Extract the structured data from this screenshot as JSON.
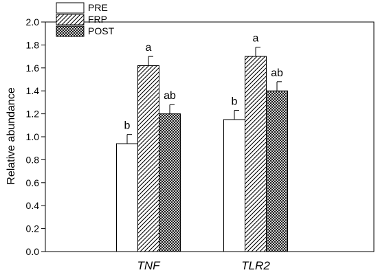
{
  "chart_data": {
    "type": "bar",
    "ylabel": "Relative abundance",
    "xlabel": "",
    "ylim": [
      0,
      2.0
    ],
    "yticks": [
      "0.0",
      "0.2",
      "0.4",
      "0.6",
      "0.8",
      "1.0",
      "1.2",
      "1.4",
      "1.6",
      "1.8",
      "2.0"
    ],
    "categories": [
      "TNF",
      "TLR2"
    ],
    "legend_position": "top-left",
    "series": [
      {
        "name": "PRE",
        "pattern": "solid-white",
        "values": [
          0.94,
          1.15
        ],
        "errors": [
          0.08,
          0.08
        ],
        "labels": [
          "b",
          "b"
        ]
      },
      {
        "name": "FRP",
        "pattern": "diagonal-hatch",
        "values": [
          1.62,
          1.7
        ],
        "errors": [
          0.08,
          0.08
        ],
        "labels": [
          "a",
          "a"
        ]
      },
      {
        "name": "POST",
        "pattern": "crosshatch",
        "values": [
          1.2,
          1.4
        ],
        "errors": [
          0.08,
          0.08
        ],
        "labels": [
          "ab",
          "ab"
        ]
      }
    ]
  }
}
